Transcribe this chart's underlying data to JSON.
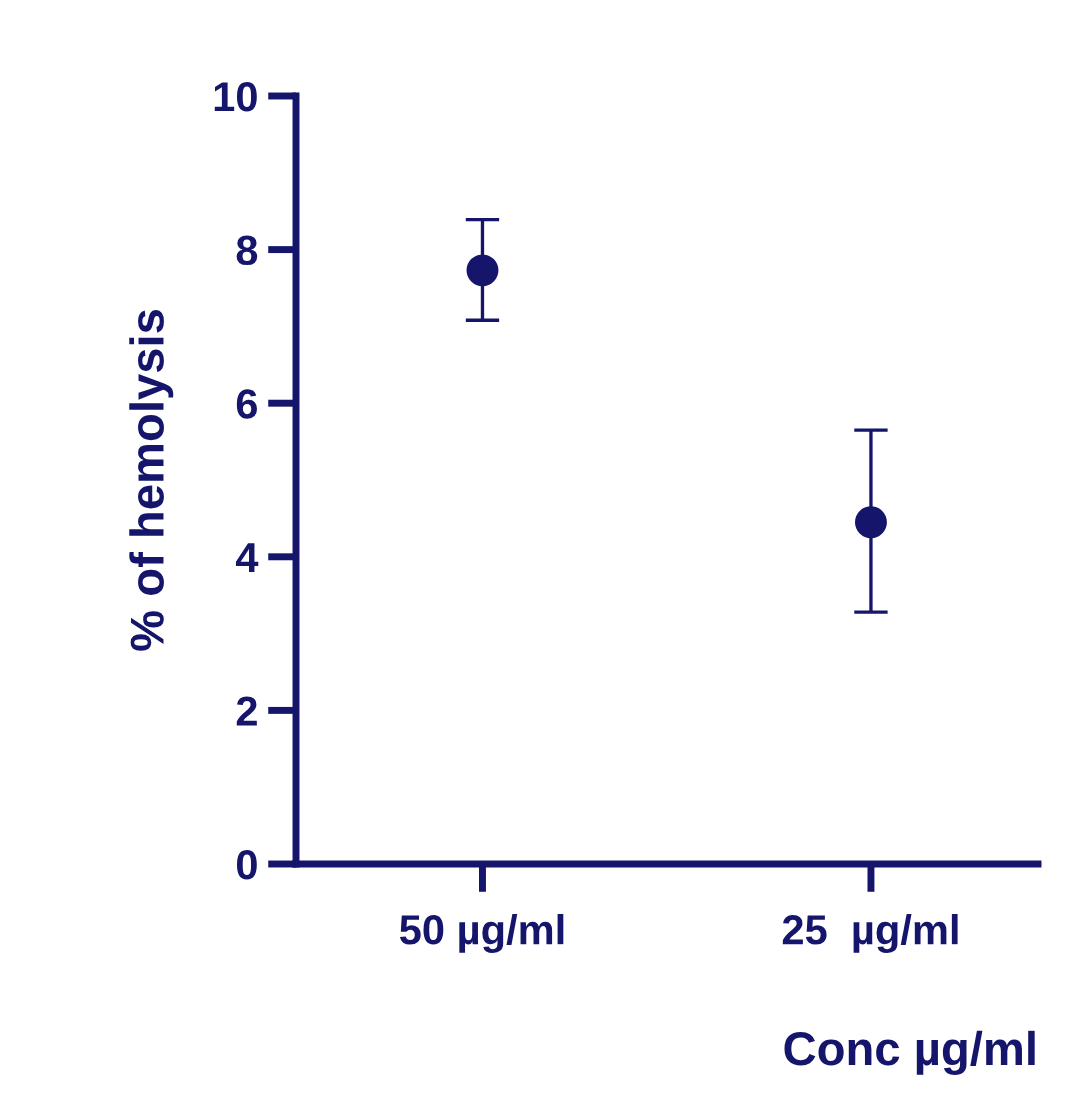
{
  "chart_data": {
    "type": "scatter",
    "ylabel": "% of hemolysis",
    "xlabel": "Conc µg/ml",
    "categories": [
      "50 µg/ml",
      "25  µg/ml"
    ],
    "series": [
      {
        "color": "#15166b",
        "values": [
          7.73,
          4.45
        ],
        "errors": [
          [
            7.08,
            8.39
          ],
          [
            3.28,
            5.65
          ]
        ]
      }
    ],
    "ylim": [
      0,
      10
    ],
    "yticks": [
      0,
      2,
      4,
      6,
      8,
      10
    ],
    "marker": "circle",
    "grid": false,
    "legend": false
  }
}
